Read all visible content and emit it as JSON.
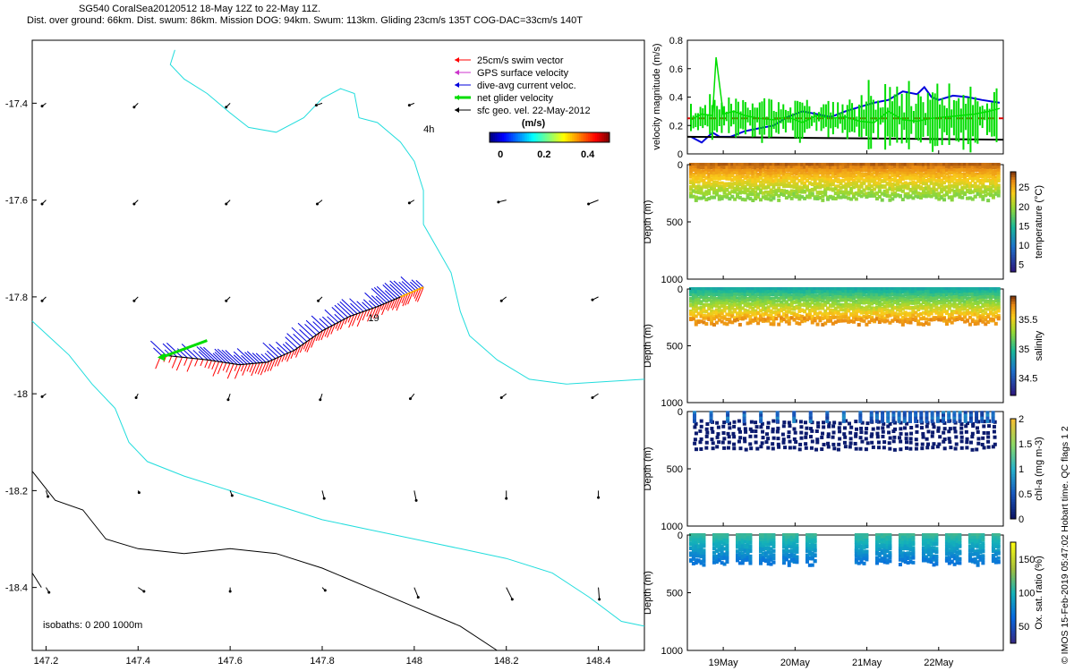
{
  "title_line1": "SG540 CoralSea20120512 18-May 12Z to 22-May 11Z.",
  "title_line2": "Dist. over ground: 66km. Dist. swum: 86km. Mission DOG: 94km. Swum: 113km. Gliding 23cm/s 135T COG-DAC=33cm/s 140T",
  "credit": "© IMOS 15-Feb-2019 05:47:02 Hobart time. QC flags 1  2",
  "colors": {
    "swim": "#ff0000",
    "gps": "#cc33cc",
    "dac": "#0000dd",
    "net": "#00dd00",
    "sfc": "#000000",
    "coast": "#22dddd",
    "isobath": "#000000",
    "chl_dots": "#0a1a6e"
  },
  "chart_data": [
    {
      "type": "scatter",
      "name": "map",
      "xlim": [
        147.17,
        148.5
      ],
      "ylim": [
        -18.53,
        -17.27
      ],
      "xticks": [
        "147.2",
        "147.4",
        "147.6",
        "147.8",
        "148",
        "148.2",
        "148.4"
      ],
      "yticks": [
        "-17.4",
        "-17.6",
        "-17.8",
        "-18",
        "-18.2",
        "-18.4"
      ],
      "legend": [
        {
          "label": "25cm/s swim vector",
          "color": "#ff0000",
          "icon": "arrow-left-icon"
        },
        {
          "label": "GPS surface velocity",
          "color": "#cc33cc",
          "icon": "arrow-left-icon"
        },
        {
          "label": "dive-avg current veloc.",
          "color": "#0000dd",
          "icon": "arrow-left-icon"
        },
        {
          "label": "net glider velocity",
          "color": "#00dd00",
          "icon": "arrow-left-icon"
        },
        {
          "label": "sfc geo. vel. 22-May-2012",
          "color": "#000000",
          "icon": "arrow-left-icon"
        }
      ],
      "colorbar": {
        "label": "(m/s)",
        "ticks": [
          "0",
          "0.2",
          "0.4"
        ],
        "range": [
          -0.05,
          0.5
        ]
      },
      "annotations": [
        {
          "text": "4h",
          "x": 148.02,
          "y": -17.46
        },
        {
          "text": "19",
          "x": 147.9,
          "y": -17.85
        }
      ],
      "isobath_label": "isobaths: 0   200  1000m",
      "track": [
        [
          147.45,
          -17.92
        ],
        [
          147.55,
          -17.93
        ],
        [
          147.62,
          -17.94
        ],
        [
          147.68,
          -17.935
        ],
        [
          147.74,
          -17.91
        ],
        [
          147.8,
          -17.87
        ],
        [
          147.86,
          -17.84
        ],
        [
          147.92,
          -17.82
        ],
        [
          147.97,
          -17.8
        ],
        [
          148.02,
          -17.78
        ]
      ],
      "coast_north": [
        [
          147.48,
          -17.29
        ],
        [
          147.47,
          -17.32
        ],
        [
          147.5,
          -17.35
        ],
        [
          147.55,
          -17.38
        ],
        [
          147.6,
          -17.42
        ],
        [
          147.64,
          -17.45
        ],
        [
          147.7,
          -17.46
        ],
        [
          147.76,
          -17.43
        ],
        [
          147.8,
          -17.39
        ],
        [
          147.84,
          -17.37
        ],
        [
          147.87,
          -17.38
        ],
        [
          147.88,
          -17.43
        ],
        [
          147.92,
          -17.44
        ],
        [
          147.97,
          -17.48
        ],
        [
          148.0,
          -17.52
        ],
        [
          148.02,
          -17.58
        ],
        [
          148.02,
          -17.65
        ],
        [
          148.05,
          -17.7
        ],
        [
          148.08,
          -17.75
        ],
        [
          148.1,
          -17.83
        ],
        [
          148.12,
          -17.88
        ],
        [
          148.18,
          -17.93
        ],
        [
          148.25,
          -17.97
        ],
        [
          148.33,
          -17.98
        ],
        [
          148.5,
          -17.97
        ]
      ],
      "coast_south": [
        [
          147.17,
          -17.85
        ],
        [
          147.25,
          -17.92
        ],
        [
          147.3,
          -17.98
        ],
        [
          147.35,
          -18.03
        ],
        [
          147.38,
          -18.1
        ],
        [
          147.42,
          -18.14
        ],
        [
          147.5,
          -18.17
        ],
        [
          147.6,
          -18.2
        ],
        [
          147.7,
          -18.23
        ],
        [
          147.8,
          -18.26
        ],
        [
          147.9,
          -18.28
        ],
        [
          148.0,
          -18.3
        ],
        [
          148.1,
          -18.32
        ],
        [
          148.2,
          -18.34
        ],
        [
          148.3,
          -18.37
        ],
        [
          148.38,
          -18.42
        ],
        [
          148.45,
          -18.47
        ],
        [
          148.5,
          -18.48
        ]
      ],
      "isobath_1000": [
        [
          147.17,
          -18.16
        ],
        [
          147.22,
          -18.22
        ],
        [
          147.28,
          -18.24
        ],
        [
          147.33,
          -18.3
        ],
        [
          147.4,
          -18.32
        ],
        [
          147.5,
          -18.33
        ],
        [
          147.6,
          -18.32
        ],
        [
          147.7,
          -18.33
        ],
        [
          147.8,
          -18.36
        ],
        [
          147.9,
          -18.4
        ],
        [
          148.0,
          -18.44
        ],
        [
          148.1,
          -18.48
        ],
        [
          148.18,
          -18.53
        ]
      ],
      "isobath_sw": [
        [
          147.17,
          -18.37
        ],
        [
          147.19,
          -18.4
        ]
      ],
      "geo_vectors": [
        {
          "x": 147.2,
          "y": -17.4,
          "u": -0.04,
          "v": -0.03
        },
        {
          "x": 147.4,
          "y": -17.4,
          "u": -0.04,
          "v": -0.04
        },
        {
          "x": 147.6,
          "y": -17.4,
          "u": -0.04,
          "v": -0.04
        },
        {
          "x": 147.8,
          "y": -17.4,
          "u": -0.06,
          "v": -0.02
        },
        {
          "x": 148.0,
          "y": -17.4,
          "u": -0.05,
          "v": -0.02
        },
        {
          "x": 147.2,
          "y": -17.6,
          "u": -0.04,
          "v": -0.04
        },
        {
          "x": 147.4,
          "y": -17.6,
          "u": -0.04,
          "v": -0.04
        },
        {
          "x": 147.6,
          "y": -17.6,
          "u": -0.04,
          "v": -0.04
        },
        {
          "x": 147.8,
          "y": -17.6,
          "u": -0.05,
          "v": -0.04
        },
        {
          "x": 148.0,
          "y": -17.6,
          "u": -0.05,
          "v": -0.03
        },
        {
          "x": 148.2,
          "y": -17.6,
          "u": -0.08,
          "v": -0.02
        },
        {
          "x": 148.4,
          "y": -17.6,
          "u": -0.1,
          "v": -0.04
        },
        {
          "x": 147.2,
          "y": -17.8,
          "u": -0.04,
          "v": -0.04
        },
        {
          "x": 147.4,
          "y": -17.8,
          "u": -0.04,
          "v": -0.04
        },
        {
          "x": 147.6,
          "y": -17.8,
          "u": -0.04,
          "v": -0.04
        },
        {
          "x": 147.8,
          "y": -17.8,
          "u": -0.04,
          "v": -0.04
        },
        {
          "x": 148.2,
          "y": -17.8,
          "u": -0.05,
          "v": -0.04
        },
        {
          "x": 148.4,
          "y": -17.8,
          "u": -0.06,
          "v": -0.03
        },
        {
          "x": 147.2,
          "y": -18.0,
          "u": -0.04,
          "v": -0.03
        },
        {
          "x": 147.4,
          "y": -18.0,
          "u": -0.02,
          "v": -0.04
        },
        {
          "x": 147.6,
          "y": -18.0,
          "u": -0.02,
          "v": -0.06
        },
        {
          "x": 147.8,
          "y": -18.0,
          "u": -0.02,
          "v": -0.06
        },
        {
          "x": 148.0,
          "y": -18.0,
          "u": -0.04,
          "v": -0.05
        },
        {
          "x": 148.2,
          "y": -18.0,
          "u": -0.05,
          "v": -0.04
        },
        {
          "x": 148.4,
          "y": -18.0,
          "u": -0.06,
          "v": -0.04
        },
        {
          "x": 147.2,
          "y": -18.2,
          "u": 0.02,
          "v": -0.06
        },
        {
          "x": 147.4,
          "y": -18.2,
          "u": 0.01,
          "v": -0.02
        },
        {
          "x": 147.6,
          "y": -18.2,
          "u": 0.02,
          "v": -0.05
        },
        {
          "x": 147.8,
          "y": -18.2,
          "u": 0.02,
          "v": -0.08
        },
        {
          "x": 148.0,
          "y": -18.2,
          "u": 0.02,
          "v": -0.1
        },
        {
          "x": 148.2,
          "y": -18.2,
          "u": 0.0,
          "v": -0.08
        },
        {
          "x": 148.4,
          "y": -18.2,
          "u": 0.0,
          "v": -0.07
        },
        {
          "x": 147.2,
          "y": -18.4,
          "u": 0.03,
          "v": -0.05
        },
        {
          "x": 147.4,
          "y": -18.4,
          "u": 0.06,
          "v": -0.04
        },
        {
          "x": 147.6,
          "y": -18.4,
          "u": 0.0,
          "v": -0.04
        },
        {
          "x": 147.8,
          "y": -18.4,
          "u": 0.03,
          "v": -0.03
        },
        {
          "x": 148.0,
          "y": -18.4,
          "u": 0.04,
          "v": -0.1
        },
        {
          "x": 148.2,
          "y": -18.4,
          "u": 0.06,
          "v": -0.12
        },
        {
          "x": 148.4,
          "y": -18.4,
          "u": 0.01,
          "v": -0.12
        }
      ]
    },
    {
      "type": "line",
      "name": "velocity",
      "ylabel": "velocity magnitude (m/s)",
      "xlim": [
        18.5,
        22.9
      ],
      "ylim": [
        0,
        0.8
      ],
      "yticks": [
        "0",
        "0.2",
        "0.4",
        "0.6",
        "0.8"
      ],
      "series": [
        {
          "color": "#00dd00",
          "x": [
            18.55,
            18.7,
            18.85,
            18.9,
            19.0,
            19.15,
            19.3,
            19.5,
            19.7,
            19.9,
            20.1,
            20.3,
            20.5,
            20.7,
            20.9,
            21.1,
            21.3,
            21.5,
            21.7,
            21.9,
            22.1,
            22.3,
            22.5,
            22.7,
            22.85
          ],
          "y": [
            0.24,
            0.28,
            0.27,
            0.68,
            0.28,
            0.3,
            0.27,
            0.25,
            0.24,
            0.26,
            0.22,
            0.27,
            0.25,
            0.26,
            0.23,
            0.22,
            0.3,
            0.24,
            0.23,
            0.25,
            0.26,
            0.27,
            0.28,
            0.3,
            0.32
          ]
        },
        {
          "color": "#0000dd",
          "x": [
            18.55,
            18.7,
            18.85,
            18.95,
            19.1,
            19.3,
            19.5,
            19.7,
            19.9,
            20.1,
            20.3,
            20.5,
            20.7,
            20.9,
            21.1,
            21.3,
            21.5,
            21.7,
            21.8,
            21.9,
            22.0,
            22.2,
            22.4,
            22.6,
            22.85
          ],
          "y": [
            0.12,
            0.08,
            0.15,
            0.12,
            0.12,
            0.16,
            0.18,
            0.2,
            0.26,
            0.3,
            0.28,
            0.26,
            0.3,
            0.33,
            0.36,
            0.38,
            0.44,
            0.42,
            0.47,
            0.4,
            0.38,
            0.41,
            0.4,
            0.38,
            0.36
          ]
        },
        {
          "color": "#dd0000",
          "dashed": true,
          "x": [
            18.5,
            22.9
          ],
          "y": [
            0.25,
            0.25
          ]
        },
        {
          "color": "#000000",
          "x": [
            18.5,
            22.9
          ],
          "y": [
            0.12,
            0.1
          ]
        }
      ]
    },
    {
      "type": "scatter",
      "name": "temperature",
      "ylabel": "Depth (m)",
      "yticks": [
        "0",
        "500",
        "1000"
      ],
      "ylim": [
        0,
        1000
      ],
      "colorbar": {
        "label": "temperature (°C)",
        "ticks": [
          "5",
          "10",
          "15",
          "20",
          "25"
        ],
        "range": [
          3,
          29
        ]
      },
      "profile": {
        "depth_range": [
          0,
          300
        ],
        "value_top": 28,
        "value_bottom": 19
      }
    },
    {
      "type": "scatter",
      "name": "salinity",
      "ylabel": "Depth (m)",
      "yticks": [
        "0",
        "500",
        "1000"
      ],
      "ylim": [
        0,
        1000
      ],
      "colorbar": {
        "label": "salinity",
        "ticks": [
          "34.5",
          "35",
          "35.5"
        ],
        "range": [
          34.2,
          35.9
        ]
      },
      "profile": {
        "depth_range": [
          0,
          300
        ],
        "value_top": 34.9,
        "value_bottom": 35.75
      }
    },
    {
      "type": "scatter",
      "name": "chl-a",
      "ylabel": "Depth (m)",
      "yticks": [
        "0",
        "500",
        "1000"
      ],
      "ylim": [
        0,
        1000
      ],
      "colorbar": {
        "label": "chl-a (mg m-3)",
        "ticks": [
          "0",
          "0.5",
          "1",
          "1.5",
          "2"
        ],
        "range": [
          0,
          2
        ]
      },
      "profile": {
        "depth_range": [
          0,
          300
        ],
        "value_top": 0.4,
        "value_bottom": 0.05
      }
    },
    {
      "type": "scatter",
      "name": "oxygen",
      "ylabel": "Depth (m)",
      "yticks": [
        "0",
        "500",
        "1000"
      ],
      "ylim": [
        0,
        1000
      ],
      "xticks": [
        "19May",
        "20May",
        "21May",
        "22May"
      ],
      "xtick_values": [
        19,
        20,
        21,
        22
      ],
      "colorbar": {
        "label": "Ox. sat. ratio (%)",
        "ticks": [
          "50",
          "100",
          "150"
        ],
        "range": [
          25,
          175
        ]
      },
      "profile": {
        "depth_range": [
          0,
          250
        ],
        "value_top": 110,
        "value_bottom": 70
      }
    }
  ]
}
